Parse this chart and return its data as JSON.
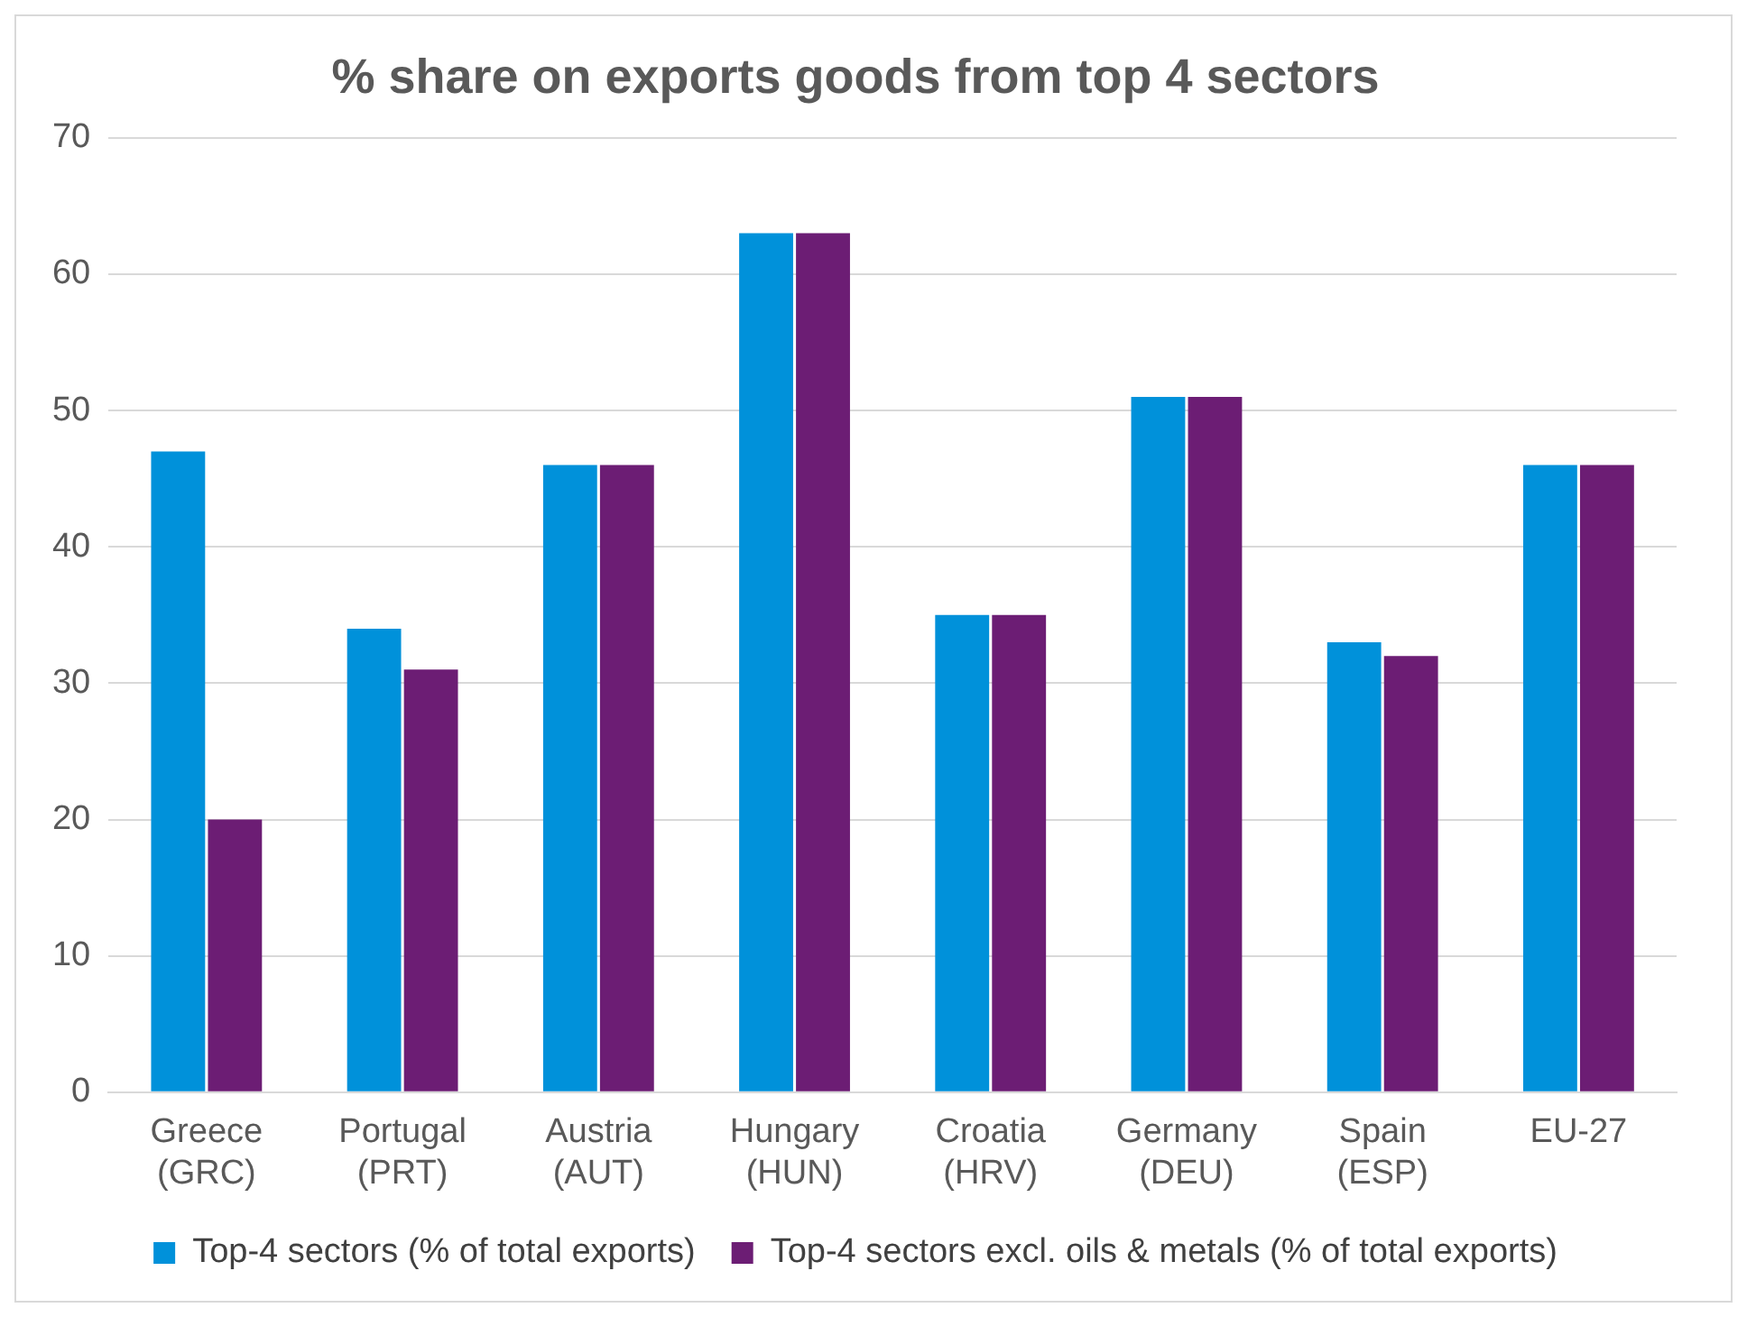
{
  "chart_data": {
    "type": "bar",
    "title": "% share on exports goods from top 4 sectors",
    "categories": [
      "Greece (GRC)",
      "Portugal (PRT)",
      "Austria (AUT)",
      "Hungary (HUN)",
      "Croatia (HRV)",
      "Germany (DEU)",
      "Spain (ESP)",
      "EU-27"
    ],
    "series": [
      {
        "name": "Top-4 sectors (% of total exports)",
        "color": "#0091da",
        "values": [
          47,
          34,
          46,
          63,
          35,
          51,
          33,
          46
        ]
      },
      {
        "name": "Top-4 sectors excl. oils & metals (% of total exports)",
        "color": "#6c1d74",
        "values": [
          20,
          31,
          46,
          63,
          35,
          51,
          32,
          46
        ]
      }
    ],
    "ylim": [
      0,
      70
    ],
    "yticks": [
      0,
      10,
      20,
      30,
      40,
      50,
      60,
      70
    ],
    "grid": "y",
    "legend": "bottom"
  }
}
